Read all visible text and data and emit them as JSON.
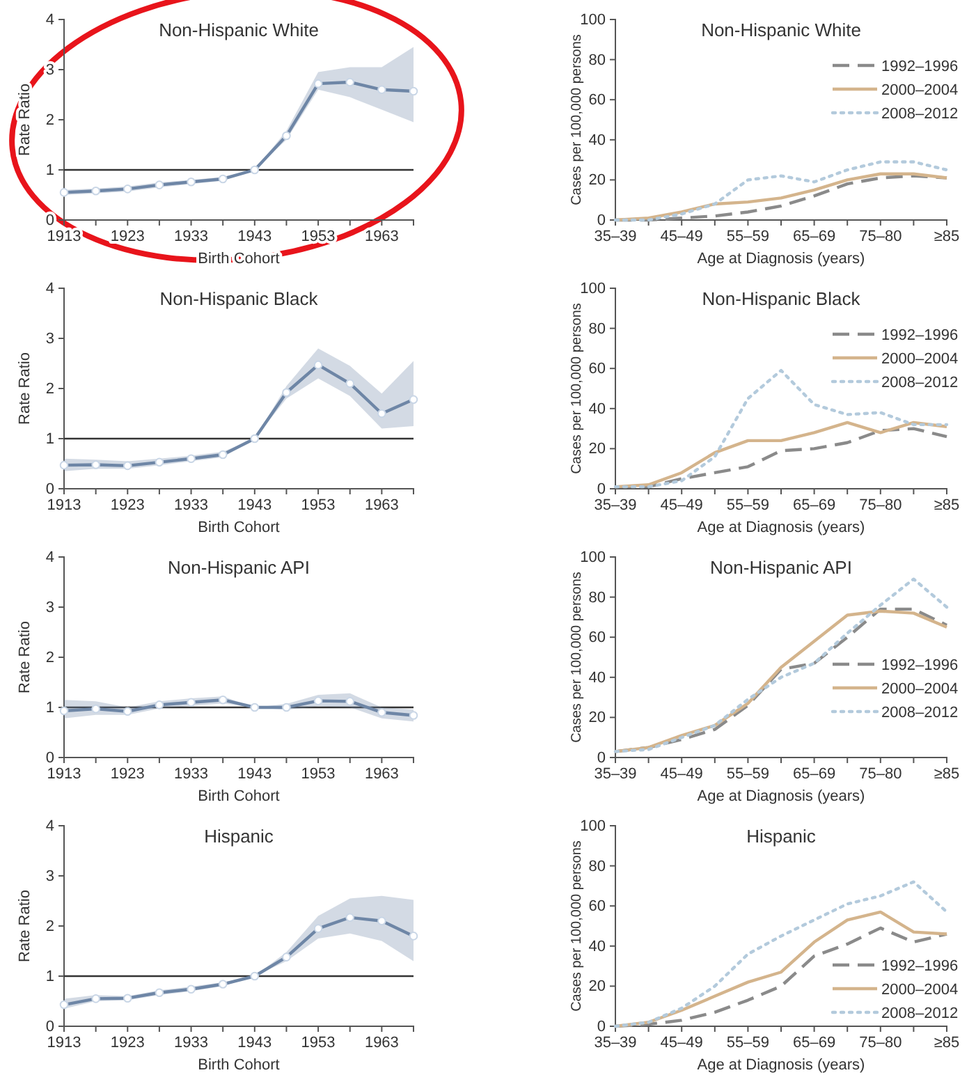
{
  "chart_data": [
    {
      "type": "line",
      "title": "Non-Hispanic White",
      "xlabel": "Birth Cohort",
      "ylabel": "Rate Ratio",
      "x": [
        1913,
        1918,
        1923,
        1928,
        1933,
        1938,
        1943,
        1948,
        1953,
        1958,
        1963,
        1968
      ],
      "series": [
        {
          "color": "#6e86a6",
          "values": [
            0.55,
            0.58,
            0.62,
            0.7,
            0.76,
            0.82,
            1.0,
            1.68,
            2.72,
            2.75,
            2.6,
            2.57
          ],
          "lower": [
            0.5,
            0.53,
            0.57,
            0.65,
            0.72,
            0.78,
            1.0,
            1.6,
            2.6,
            2.45,
            2.2,
            1.95
          ],
          "upper": [
            0.6,
            0.63,
            0.67,
            0.75,
            0.8,
            0.86,
            1.0,
            1.78,
            2.95,
            3.05,
            3.05,
            3.45
          ]
        }
      ],
      "xlim": [
        1913,
        1968
      ],
      "xticks": [
        1913,
        {
          "value": 1918,
          "label": null
        },
        1923,
        {
          "value": 1928,
          "label": null
        },
        1933,
        {
          "value": 1938,
          "label": null
        },
        1943,
        {
          "value": 1948,
          "label": null
        },
        1953,
        {
          "value": 1958,
          "label": null
        },
        1963,
        {
          "value": 1968,
          "label": null
        }
      ],
      "ylim": [
        0,
        4
      ],
      "yticks": [
        0,
        1,
        2,
        3,
        4
      ],
      "ref_lines": [
        {
          "axis": "y",
          "value": 1,
          "color": "#333333"
        }
      ],
      "marker": "circle"
    },
    {
      "type": "line",
      "title": "Non-Hispanic White",
      "xlabel": "Age at Diagnosis (years)",
      "ylabel": "Cases per 100,000 persons",
      "categories": [
        "35–39",
        null,
        "45–49",
        null,
        "55–59",
        null,
        "65–69",
        null,
        "75–80",
        null,
        "≥85"
      ],
      "series": [
        {
          "name": "1992–1996",
          "color": "#8a8a8a",
          "line_style": "dashed",
          "values": [
            0,
            0,
            1,
            2,
            4,
            7,
            12,
            18,
            21,
            22,
            21
          ]
        },
        {
          "name": "2000–2004",
          "color": "#d4b48c",
          "line_style": "solid",
          "values": [
            0,
            1,
            4,
            8,
            9,
            11,
            15,
            20,
            23,
            23,
            21
          ]
        },
        {
          "name": "2008–2012",
          "color": "#b3cadc",
          "line_style": "dotted",
          "values": [
            0,
            0,
            3,
            8,
            20,
            22,
            19,
            25,
            29,
            29,
            25
          ]
        }
      ],
      "ylim": [
        0,
        100
      ],
      "yticks": [
        0,
        20,
        40,
        60,
        80,
        100
      ],
      "legend": "top right"
    },
    {
      "type": "line",
      "title": "Non-Hispanic Black",
      "xlabel": "Birth Cohort",
      "ylabel": "Rate Ratio",
      "x": [
        1913,
        1918,
        1923,
        1928,
        1933,
        1938,
        1943,
        1948,
        1953,
        1958,
        1963,
        1968
      ],
      "series": [
        {
          "color": "#6e86a6",
          "values": [
            0.47,
            0.48,
            0.46,
            0.53,
            0.6,
            0.68,
            1.0,
            1.92,
            2.47,
            2.1,
            1.5,
            1.78
          ],
          "lower": [
            0.35,
            0.4,
            0.4,
            0.47,
            0.55,
            0.63,
            1.0,
            1.8,
            2.2,
            1.85,
            1.2,
            1.25
          ],
          "upper": [
            0.6,
            0.58,
            0.55,
            0.6,
            0.66,
            0.74,
            1.0,
            2.05,
            2.8,
            2.45,
            1.9,
            2.55
          ]
        }
      ],
      "xlim": [
        1913,
        1968
      ],
      "xticks": [
        1913,
        {
          "value": 1918,
          "label": null
        },
        1923,
        {
          "value": 1928,
          "label": null
        },
        1933,
        {
          "value": 1938,
          "label": null
        },
        1943,
        {
          "value": 1948,
          "label": null
        },
        1953,
        {
          "value": 1958,
          "label": null
        },
        1963,
        {
          "value": 1968,
          "label": null
        }
      ],
      "ylim": [
        0,
        4
      ],
      "yticks": [
        0,
        1,
        2,
        3,
        4
      ],
      "ref_lines": [
        {
          "axis": "y",
          "value": 1,
          "color": "#333333"
        }
      ],
      "marker": "circle"
    },
    {
      "type": "line",
      "title": "Non-Hispanic Black",
      "xlabel": "Age at Diagnosis (years)",
      "ylabel": "Cases per 100,000 persons",
      "categories": [
        "35–39",
        null,
        "45–49",
        null,
        "55–59",
        null,
        "65–69",
        null,
        "75–80",
        null,
        "≥85"
      ],
      "series": [
        {
          "name": "1992–1996",
          "color": "#8a8a8a",
          "line_style": "dashed",
          "values": [
            1,
            1,
            5,
            8,
            11,
            19,
            20,
            23,
            29,
            30,
            26
          ]
        },
        {
          "name": "2000–2004",
          "color": "#d4b48c",
          "line_style": "solid",
          "values": [
            1,
            2,
            8,
            18,
            24,
            24,
            28,
            33,
            28,
            33,
            31
          ]
        },
        {
          "name": "2008–2012",
          "color": "#b3cadc",
          "line_style": "dotted",
          "values": [
            1,
            1,
            4,
            16,
            45,
            59,
            42,
            37,
            38,
            32,
            32
          ]
        }
      ],
      "ylim": [
        0,
        100
      ],
      "yticks": [
        0,
        20,
        40,
        60,
        80,
        100
      ],
      "legend": "top right"
    },
    {
      "type": "line",
      "title": "Non-Hispanic API",
      "xlabel": "Birth Cohort",
      "ylabel": "Rate Ratio",
      "x": [
        1913,
        1918,
        1923,
        1928,
        1933,
        1938,
        1943,
        1948,
        1953,
        1958,
        1963,
        1968
      ],
      "series": [
        {
          "color": "#6e86a6",
          "values": [
            0.93,
            0.97,
            0.92,
            1.05,
            1.1,
            1.15,
            1.0,
            1.0,
            1.13,
            1.12,
            0.9,
            0.84
          ],
          "lower": [
            0.78,
            0.85,
            0.85,
            0.98,
            1.03,
            1.08,
            1.0,
            0.95,
            1.02,
            1.0,
            0.78,
            0.72
          ],
          "upper": [
            1.15,
            1.12,
            1.0,
            1.12,
            1.18,
            1.22,
            1.0,
            1.07,
            1.25,
            1.28,
            1.0,
            0.96
          ]
        }
      ],
      "xlim": [
        1913,
        1968
      ],
      "xticks": [
        1913,
        {
          "value": 1918,
          "label": null
        },
        1923,
        {
          "value": 1928,
          "label": null
        },
        1933,
        {
          "value": 1938,
          "label": null
        },
        1943,
        {
          "value": 1948,
          "label": null
        },
        1953,
        {
          "value": 1958,
          "label": null
        },
        1963,
        {
          "value": 1968,
          "label": null
        }
      ],
      "ylim": [
        0,
        4
      ],
      "yticks": [
        0,
        1,
        2,
        3,
        4
      ],
      "ref_lines": [
        {
          "axis": "y",
          "value": 1,
          "color": "#333333"
        }
      ],
      "marker": "circle"
    },
    {
      "type": "line",
      "title": "Non-Hispanic API",
      "xlabel": "Age at Diagnosis (years)",
      "ylabel": "Cases per 100,000 persons",
      "categories": [
        "35–39",
        null,
        "45–49",
        null,
        "55–59",
        null,
        "65–69",
        null,
        "75–80",
        null,
        "≥85"
      ],
      "series": [
        {
          "name": "1992–1996",
          "color": "#8a8a8a",
          "line_style": "dashed",
          "values": [
            3,
            5,
            9,
            14,
            26,
            44,
            47,
            60,
            74,
            74,
            66
          ]
        },
        {
          "name": "2000–2004",
          "color": "#d4b48c",
          "line_style": "solid",
          "values": [
            3,
            5,
            11,
            16,
            27,
            45,
            58,
            71,
            73,
            72,
            65
          ]
        },
        {
          "name": "2008–2012",
          "color": "#b3cadc",
          "line_style": "dotted",
          "values": [
            3,
            4,
            10,
            16,
            29,
            40,
            47,
            62,
            76,
            89,
            75
          ]
        }
      ],
      "ylim": [
        0,
        100
      ],
      "yticks": [
        0,
        20,
        40,
        60,
        80,
        100
      ],
      "legend": "right"
    },
    {
      "type": "line",
      "title": "Hispanic",
      "xlabel": "Birth Cohort",
      "ylabel": "Rate Ratio",
      "x": [
        1913,
        1918,
        1923,
        1928,
        1933,
        1938,
        1943,
        1948,
        1953,
        1958,
        1963,
        1968
      ],
      "series": [
        {
          "color": "#6e86a6",
          "values": [
            0.43,
            0.55,
            0.56,
            0.67,
            0.74,
            0.84,
            1.0,
            1.38,
            1.95,
            2.17,
            2.1,
            1.8
          ],
          "lower": [
            0.35,
            0.5,
            0.52,
            0.62,
            0.7,
            0.8,
            1.0,
            1.3,
            1.75,
            1.85,
            1.7,
            1.3
          ],
          "upper": [
            0.55,
            0.62,
            0.6,
            0.72,
            0.79,
            0.88,
            1.0,
            1.48,
            2.2,
            2.55,
            2.6,
            2.52
          ]
        }
      ],
      "xlim": [
        1913,
        1968
      ],
      "xticks": [
        1913,
        {
          "value": 1918,
          "label": null
        },
        1923,
        {
          "value": 1928,
          "label": null
        },
        1933,
        {
          "value": 1938,
          "label": null
        },
        1943,
        {
          "value": 1948,
          "label": null
        },
        1953,
        {
          "value": 1958,
          "label": null
        },
        1963,
        {
          "value": 1968,
          "label": null
        }
      ],
      "ylim": [
        0,
        4
      ],
      "yticks": [
        0,
        1,
        2,
        3,
        4
      ],
      "ref_lines": [
        {
          "axis": "y",
          "value": 1,
          "color": "#333333"
        }
      ],
      "marker": "circle"
    },
    {
      "type": "line",
      "title": "Hispanic",
      "xlabel": "Age at Diagnosis (years)",
      "ylabel": "Cases per 100,000 persons",
      "categories": [
        "35–39",
        null,
        "45–49",
        null,
        "55–59",
        null,
        "65–69",
        null,
        "75–80",
        null,
        "≥85"
      ],
      "series": [
        {
          "name": "1992–1996",
          "color": "#8a8a8a",
          "line_style": "dashed",
          "values": [
            0,
            1,
            3,
            7,
            13,
            20,
            35,
            41,
            49,
            42,
            46
          ]
        },
        {
          "name": "2000–2004",
          "color": "#d4b48c",
          "line_style": "solid",
          "values": [
            0,
            2,
            8,
            15,
            22,
            27,
            42,
            53,
            57,
            47,
            46
          ]
        },
        {
          "name": "2008–2012",
          "color": "#b3cadc",
          "line_style": "dotted",
          "values": [
            0,
            2,
            9,
            20,
            36,
            45,
            53,
            61,
            65,
            72,
            57
          ]
        }
      ],
      "ylim": [
        0,
        100
      ],
      "yticks": [
        0,
        20,
        40,
        60,
        80,
        100
      ],
      "legend": "bottom right"
    }
  ]
}
